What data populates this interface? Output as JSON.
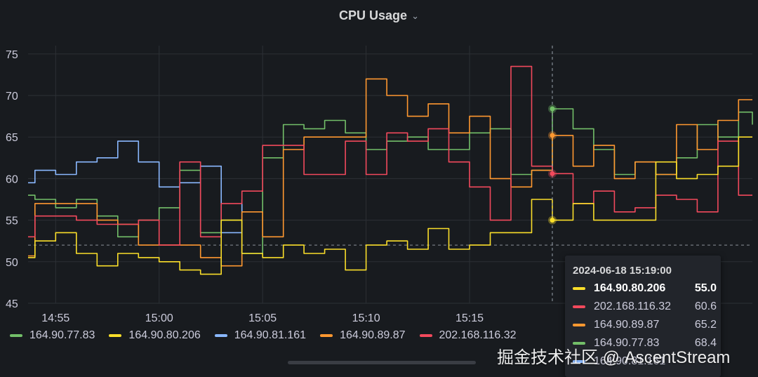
{
  "panel": {
    "title": "CPU Usage",
    "title_icon": "chevron-down-icon"
  },
  "chart_data": {
    "type": "line",
    "title": "CPU Usage",
    "xlabel": "",
    "ylabel": "",
    "ylim": [
      45,
      76
    ],
    "yticks": [
      45,
      50,
      55,
      60,
      65,
      70,
      75
    ],
    "x_time_range": [
      "14:53:40",
      "15:23:00"
    ],
    "xticks": [
      "14:55",
      "15:00",
      "15:05",
      "15:10",
      "15:15"
    ],
    "grid": true,
    "legend_position": "bottom-left",
    "threshold_line": 52,
    "hover_time": "15:19:00",
    "series": [
      {
        "name": "164.90.77.83",
        "color": "#73bf69",
        "points": [
          [
            "14:53:40",
            58
          ],
          [
            "14:54:00",
            57.5
          ],
          [
            "14:55:00",
            56.5
          ],
          [
            "14:56:00",
            57.5
          ],
          [
            "14:57:00",
            55.5
          ],
          [
            "14:58:00",
            53
          ],
          [
            "14:59:00",
            55
          ],
          [
            "15:00:00",
            56.5
          ],
          [
            "15:01:00",
            61
          ],
          [
            "15:02:00",
            53.5
          ],
          [
            "15:03:00",
            55
          ],
          [
            "15:04:00",
            51
          ],
          [
            "15:05:00",
            62.5
          ],
          [
            "15:06:00",
            66.5
          ],
          [
            "15:07:00",
            66
          ],
          [
            "15:08:00",
            67
          ],
          [
            "15:09:00",
            65.5
          ],
          [
            "15:10:00",
            63.5
          ],
          [
            "15:11:00",
            64.5
          ],
          [
            "15:12:00",
            65
          ],
          [
            "15:13:00",
            63.5
          ],
          [
            "15:14:00",
            63.5
          ],
          [
            "15:15:00",
            65.5
          ],
          [
            "15:16:00",
            66
          ],
          [
            "15:17:00",
            60.5
          ],
          [
            "15:18:00",
            61
          ],
          [
            "15:19:00",
            68.4
          ],
          [
            "15:20:00",
            66
          ],
          [
            "15:21:00",
            63.5
          ],
          [
            "15:22:00",
            60.5
          ],
          [
            "15:23:00",
            62
          ],
          [
            "15:24:00",
            60.5
          ],
          [
            "15:25:00",
            62.5
          ],
          [
            "15:26:00",
            66.5
          ],
          [
            "15:27:00",
            65
          ],
          [
            "15:28:00",
            68
          ],
          [
            "15:28:40",
            66.5
          ]
        ]
      },
      {
        "name": "164.90.80.206",
        "color": "#fade2a",
        "points": [
          [
            "14:53:40",
            50.5
          ],
          [
            "14:54:00",
            52.5
          ],
          [
            "14:55:00",
            53.5
          ],
          [
            "14:56:00",
            51
          ],
          [
            "14:57:00",
            49.5
          ],
          [
            "14:58:00",
            51
          ],
          [
            "14:59:00",
            50.5
          ],
          [
            "15:00:00",
            50
          ],
          [
            "15:01:00",
            49
          ],
          [
            "15:02:00",
            48.5
          ],
          [
            "15:03:00",
            55
          ],
          [
            "15:04:00",
            51
          ],
          [
            "15:05:00",
            50.5
          ],
          [
            "15:06:00",
            52
          ],
          [
            "15:07:00",
            51
          ],
          [
            "15:08:00",
            51.5
          ],
          [
            "15:09:00",
            49
          ],
          [
            "15:10:00",
            52
          ],
          [
            "15:11:00",
            52.5
          ],
          [
            "15:12:00",
            51.5
          ],
          [
            "15:13:00",
            54
          ],
          [
            "15:14:00",
            51.5
          ],
          [
            "15:15:00",
            52
          ],
          [
            "15:16:00",
            53.5
          ],
          [
            "15:17:00",
            53.5
          ],
          [
            "15:18:00",
            57.5
          ],
          [
            "15:19:00",
            55
          ],
          [
            "15:20:00",
            57
          ],
          [
            "15:21:00",
            55
          ],
          [
            "15:22:00",
            55
          ],
          [
            "15:23:00",
            55
          ],
          [
            "15:24:00",
            62
          ],
          [
            "15:25:00",
            60
          ],
          [
            "15:26:00",
            60.5
          ],
          [
            "15:27:00",
            61.5
          ],
          [
            "15:28:00",
            65
          ],
          [
            "15:28:40",
            65
          ]
        ]
      },
      {
        "name": "164.90.81.161",
        "color": "#8ab8ff",
        "points": [
          [
            "14:53:40",
            59.5
          ],
          [
            "14:54:00",
            61
          ],
          [
            "14:55:00",
            60.5
          ],
          [
            "14:56:00",
            62
          ],
          [
            "14:57:00",
            62.5
          ],
          [
            "14:58:00",
            64.5
          ],
          [
            "14:59:00",
            62
          ],
          [
            "15:00:00",
            59
          ],
          [
            "15:01:00",
            59.5
          ],
          [
            "15:02:00",
            61.5
          ],
          [
            "15:03:00",
            53.5
          ],
          [
            "15:04:00",
            57.5
          ]
        ]
      },
      {
        "name": "164.90.89.87",
        "color": "#ff9830",
        "points": [
          [
            "14:53:40",
            50.7
          ],
          [
            "14:54:00",
            57
          ],
          [
            "14:55:00",
            57
          ],
          [
            "14:56:00",
            57
          ],
          [
            "14:57:00",
            55
          ],
          [
            "14:58:00",
            54.5
          ],
          [
            "14:59:00",
            52
          ],
          [
            "15:00:00",
            52
          ],
          [
            "15:01:00",
            52
          ],
          [
            "15:02:00",
            50.5
          ],
          [
            "15:03:00",
            49.5
          ],
          [
            "15:04:00",
            56
          ],
          [
            "15:05:00",
            53
          ],
          [
            "15:06:00",
            63.5
          ],
          [
            "15:07:00",
            65
          ],
          [
            "15:08:00",
            65
          ],
          [
            "15:09:00",
            65
          ],
          [
            "15:10:00",
            72
          ],
          [
            "15:11:00",
            70
          ],
          [
            "15:12:00",
            67.5
          ],
          [
            "15:13:00",
            69
          ],
          [
            "15:14:00",
            65.5
          ],
          [
            "15:15:00",
            67.5
          ],
          [
            "15:16:00",
            60
          ],
          [
            "15:17:00",
            59
          ],
          [
            "15:18:00",
            61
          ],
          [
            "15:19:00",
            65.2
          ],
          [
            "15:20:00",
            61.5
          ],
          [
            "15:21:00",
            64
          ],
          [
            "15:22:00",
            60
          ],
          [
            "15:23:00",
            62
          ],
          [
            "15:24:00",
            60.5
          ],
          [
            "15:25:00",
            66.5
          ],
          [
            "15:26:00",
            63.5
          ],
          [
            "15:27:00",
            67
          ],
          [
            "15:28:00",
            69.5
          ],
          [
            "15:28:40",
            69.5
          ]
        ]
      },
      {
        "name": "202.168.116.32",
        "color": "#f2495c",
        "points": [
          [
            "14:53:40",
            53
          ],
          [
            "14:54:00",
            55.5
          ],
          [
            "14:55:00",
            55.5
          ],
          [
            "14:56:00",
            55
          ],
          [
            "14:57:00",
            54.5
          ],
          [
            "14:58:00",
            54.5
          ],
          [
            "14:59:00",
            55
          ],
          [
            "15:00:00",
            52
          ],
          [
            "15:01:00",
            62
          ],
          [
            "15:02:00",
            53
          ],
          [
            "15:03:00",
            57
          ],
          [
            "15:04:00",
            58.5
          ],
          [
            "15:05:00",
            64
          ],
          [
            "15:06:00",
            64
          ],
          [
            "15:07:00",
            60.5
          ],
          [
            "15:08:00",
            60.5
          ],
          [
            "15:09:00",
            64.5
          ],
          [
            "15:10:00",
            60.5
          ],
          [
            "15:11:00",
            65.5
          ],
          [
            "15:12:00",
            64.5
          ],
          [
            "15:13:00",
            66
          ],
          [
            "15:14:00",
            62
          ],
          [
            "15:15:00",
            59
          ],
          [
            "15:16:00",
            55
          ],
          [
            "15:17:00",
            73.5
          ],
          [
            "15:18:00",
            61.5
          ],
          [
            "15:19:00",
            60.6
          ],
          [
            "15:20:00",
            57
          ],
          [
            "15:21:00",
            58.5
          ],
          [
            "15:22:00",
            56
          ],
          [
            "15:23:00",
            56.5
          ],
          [
            "15:24:00",
            58
          ],
          [
            "15:25:00",
            57.5
          ],
          [
            "15:26:00",
            56
          ],
          [
            "15:27:00",
            64.5
          ],
          [
            "15:28:00",
            58
          ],
          [
            "15:28:40",
            58
          ]
        ]
      }
    ]
  },
  "legend": [
    {
      "name": "164.90.77.83",
      "color": "#73bf69"
    },
    {
      "name": "164.90.80.206",
      "color": "#fade2a"
    },
    {
      "name": "164.90.81.161",
      "color": "#8ab8ff"
    },
    {
      "name": "164.90.89.87",
      "color": "#ff9830"
    },
    {
      "name": "202.168.116.32",
      "color": "#f2495c"
    }
  ],
  "tooltip": {
    "time": "2024-06-18 15:19:00",
    "rows": [
      {
        "name": "164.90.80.206",
        "value": "55.0",
        "color": "#fade2a"
      },
      {
        "name": "202.168.116.32",
        "value": "60.6",
        "color": "#f2495c"
      },
      {
        "name": "164.90.89.87",
        "value": "65.2",
        "color": "#ff9830"
      },
      {
        "name": "164.90.77.83",
        "value": "68.4",
        "color": "#73bf69"
      },
      {
        "name": "164.90.81.161",
        "value": "",
        "color": "#8ab8ff"
      }
    ]
  },
  "watermark": "掘金技术社区 @ AscentStream"
}
